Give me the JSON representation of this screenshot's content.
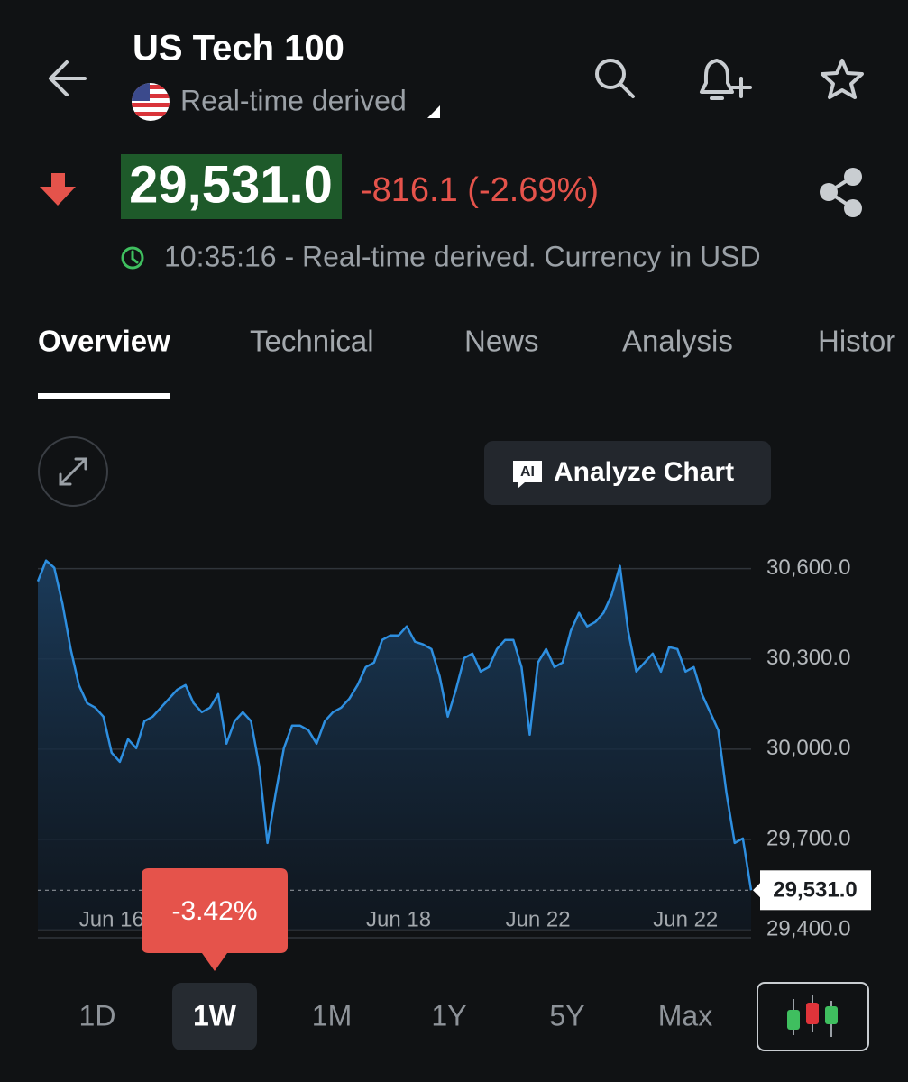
{
  "header": {
    "title": "US Tech 100",
    "subtitle": "Real-time derived"
  },
  "quote": {
    "price": "29,531.0",
    "change": "-816.1 (-2.69%)",
    "timestamp": "10:35:16 - Real-time derived. Currency in USD"
  },
  "tabs": [
    "Overview",
    "Technical",
    "News",
    "Analysis",
    "Histor"
  ],
  "active_tab": 0,
  "analyze_button": {
    "icon_text": "AI",
    "label": "Analyze Chart"
  },
  "ranges": {
    "options": [
      "1D",
      "1W",
      "1M",
      "1Y",
      "5Y",
      "Max"
    ],
    "selected": 1,
    "change": "-3.42%"
  },
  "chart_data": {
    "type": "line",
    "categories": [
      null,
      null,
      null,
      null,
      null,
      null,
      null,
      null,
      null,
      "Jun 16",
      null,
      null,
      null,
      null,
      null,
      null,
      null,
      null,
      null,
      null,
      null,
      null,
      null,
      null,
      null,
      null,
      null,
      null,
      null,
      null,
      null,
      null,
      null,
      null,
      null,
      null,
      null,
      null,
      null,
      null,
      null,
      null,
      null,
      null,
      "Jun 18",
      null,
      null,
      null,
      null,
      null,
      null,
      null,
      null,
      null,
      null,
      null,
      null,
      null,
      null,
      null,
      null,
      "Jun 22",
      null,
      null,
      null,
      null,
      null,
      null,
      null,
      null,
      null,
      null,
      null,
      null,
      null,
      null,
      null,
      null,
      null,
      "Jun 22",
      null,
      null,
      null,
      null,
      null,
      null,
      null,
      null
    ],
    "series": [
      {
        "color": "#2e8fe0",
        "values": [
          30558,
          30627,
          30603,
          30483,
          30333,
          30213,
          30153,
          30138,
          30108,
          29988,
          29958,
          30033,
          30003,
          30093,
          30108,
          30138,
          30168,
          30198,
          30213,
          30153,
          30123,
          30138,
          30183,
          30018,
          30093,
          30123,
          30093,
          29943,
          29688,
          29853,
          30003,
          30078,
          30078,
          30063,
          30018,
          30093,
          30123,
          30138,
          30168,
          30213,
          30273,
          30288,
          30363,
          30378,
          30378,
          30408,
          30357,
          30348,
          30333,
          30243,
          30108,
          30198,
          30303,
          30318,
          30258,
          30273,
          30333,
          30363,
          30363,
          30273,
          30048,
          30288,
          30333,
          30273,
          30288,
          30393,
          30453,
          30408,
          30423,
          30453,
          30513,
          30609,
          30393,
          30258,
          30288,
          30318,
          30258,
          30339,
          30333,
          30258,
          30273,
          30183,
          30123,
          30063,
          29853,
          29688,
          29703,
          29531
        ],
        "value_labels": [
          null,
          null,
          null,
          null,
          null,
          null,
          null,
          null,
          null,
          null,
          null,
          null,
          null,
          null,
          null,
          null,
          null,
          null,
          null,
          null,
          null,
          null,
          null,
          null,
          null,
          null,
          null,
          null,
          null,
          null,
          null,
          null,
          null,
          null,
          null,
          null,
          null,
          null,
          null,
          null,
          null,
          null,
          null,
          null,
          null,
          null,
          null,
          null,
          null,
          null,
          null,
          null,
          null,
          null,
          null,
          null,
          null,
          null,
          null,
          null,
          null,
          null,
          null,
          null,
          null,
          null,
          null,
          null,
          null,
          null,
          null,
          null,
          null,
          null,
          null,
          null,
          null,
          null,
          null,
          null,
          null,
          null,
          null,
          null,
          null,
          null,
          null,
          "29,531.0"
        ]
      }
    ],
    "ylim": [
      29400,
      30650
    ],
    "yticks": [
      {
        "value": 29400,
        "label": "29,400.0"
      },
      {
        "value": 29700,
        "label": "29,700.0"
      },
      {
        "value": 30000,
        "label": "30,000.0"
      },
      {
        "value": 30300,
        "label": "30,300.0"
      },
      {
        "value": 30600,
        "label": "30,600.0"
      }
    ],
    "grid": true
  }
}
